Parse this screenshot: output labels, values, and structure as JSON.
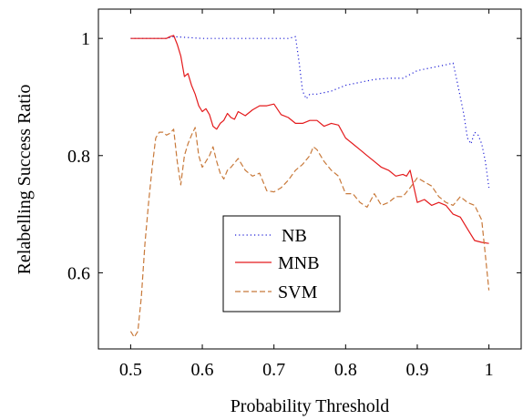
{
  "chart_data": {
    "type": "line",
    "xlabel": "Probability Threshold",
    "ylabel": "Relabelling Success Ratio",
    "xlim": [
      0.455,
      1.045
    ],
    "ylim": [
      0.47,
      1.05
    ],
    "xticks": [
      0.5,
      0.6,
      0.7,
      0.8,
      0.9,
      1
    ],
    "xtick_labels": [
      "0.5",
      "0.6",
      "0.7",
      "0.8",
      "0.9",
      "1"
    ],
    "yticks": [
      0.6,
      0.8,
      1.0
    ],
    "ytick_labels": [
      "0.6",
      "0.8",
      "1"
    ],
    "grid": false,
    "legend_position": "lower-left",
    "series": [
      {
        "name": "NB",
        "color": "#1f1fd6",
        "dash": "dotted",
        "x": [
          0.5,
          0.55,
          0.56,
          0.6,
          0.65,
          0.7,
          0.72,
          0.73,
          0.735,
          0.74,
          0.745,
          0.75,
          0.76,
          0.78,
          0.8,
          0.82,
          0.84,
          0.86,
          0.88,
          0.9,
          0.92,
          0.94,
          0.95,
          0.955,
          0.96,
          0.965,
          0.97,
          0.975,
          0.98,
          0.985,
          0.99,
          0.995,
          1.0
        ],
        "y": [
          1.0,
          1.0,
          1.003,
          1.0,
          1.0,
          1.0,
          1.0,
          1.003,
          0.96,
          0.91,
          0.897,
          0.905,
          0.905,
          0.91,
          0.92,
          0.925,
          0.93,
          0.932,
          0.932,
          0.945,
          0.95,
          0.955,
          0.958,
          0.93,
          0.9,
          0.87,
          0.83,
          0.82,
          0.84,
          0.835,
          0.82,
          0.79,
          0.745
        ]
      },
      {
        "name": "MNB",
        "color": "#e41a1c",
        "dash": "solid",
        "x": [
          0.5,
          0.51,
          0.53,
          0.55,
          0.555,
          0.56,
          0.565,
          0.57,
          0.575,
          0.58,
          0.585,
          0.59,
          0.595,
          0.6,
          0.605,
          0.61,
          0.615,
          0.62,
          0.625,
          0.63,
          0.635,
          0.64,
          0.645,
          0.65,
          0.66,
          0.67,
          0.68,
          0.69,
          0.7,
          0.71,
          0.72,
          0.73,
          0.74,
          0.75,
          0.76,
          0.77,
          0.78,
          0.79,
          0.8,
          0.81,
          0.82,
          0.83,
          0.84,
          0.85,
          0.86,
          0.87,
          0.88,
          0.885,
          0.89,
          0.9,
          0.91,
          0.92,
          0.93,
          0.94,
          0.95,
          0.96,
          0.97,
          0.98,
          0.99,
          1.0
        ],
        "y": [
          1.0,
          1.0,
          1.0,
          1.0,
          1.003,
          1.005,
          0.99,
          0.97,
          0.935,
          0.94,
          0.92,
          0.905,
          0.885,
          0.875,
          0.88,
          0.87,
          0.85,
          0.845,
          0.855,
          0.86,
          0.872,
          0.865,
          0.862,
          0.875,
          0.868,
          0.878,
          0.885,
          0.885,
          0.888,
          0.87,
          0.865,
          0.855,
          0.855,
          0.86,
          0.86,
          0.85,
          0.855,
          0.852,
          0.83,
          0.82,
          0.81,
          0.8,
          0.79,
          0.78,
          0.775,
          0.765,
          0.768,
          0.765,
          0.775,
          0.72,
          0.725,
          0.715,
          0.72,
          0.715,
          0.7,
          0.695,
          0.675,
          0.655,
          0.652,
          0.65
        ]
      },
      {
        "name": "SVM",
        "color": "#c8793a",
        "dash": "dashed",
        "x": [
          0.5,
          0.505,
          0.51,
          0.515,
          0.52,
          0.525,
          0.53,
          0.535,
          0.54,
          0.545,
          0.55,
          0.555,
          0.56,
          0.565,
          0.57,
          0.575,
          0.58,
          0.585,
          0.59,
          0.595,
          0.6,
          0.605,
          0.61,
          0.615,
          0.62,
          0.625,
          0.63,
          0.635,
          0.64,
          0.65,
          0.66,
          0.67,
          0.68,
          0.69,
          0.7,
          0.71,
          0.72,
          0.73,
          0.74,
          0.75,
          0.755,
          0.76,
          0.77,
          0.78,
          0.79,
          0.8,
          0.81,
          0.82,
          0.83,
          0.84,
          0.85,
          0.86,
          0.87,
          0.88,
          0.89,
          0.9,
          0.91,
          0.92,
          0.93,
          0.94,
          0.95,
          0.96,
          0.97,
          0.98,
          0.99,
          0.995,
          1.0
        ],
        "y": [
          0.5,
          0.49,
          0.5,
          0.56,
          0.65,
          0.72,
          0.78,
          0.83,
          0.84,
          0.84,
          0.835,
          0.838,
          0.845,
          0.79,
          0.75,
          0.8,
          0.82,
          0.835,
          0.848,
          0.8,
          0.78,
          0.79,
          0.8,
          0.815,
          0.79,
          0.77,
          0.76,
          0.775,
          0.78,
          0.795,
          0.775,
          0.765,
          0.77,
          0.74,
          0.738,
          0.745,
          0.758,
          0.775,
          0.785,
          0.8,
          0.815,
          0.81,
          0.79,
          0.775,
          0.765,
          0.735,
          0.735,
          0.72,
          0.712,
          0.735,
          0.715,
          0.72,
          0.73,
          0.73,
          0.745,
          0.762,
          0.755,
          0.748,
          0.73,
          0.72,
          0.715,
          0.73,
          0.72,
          0.715,
          0.69,
          0.63,
          0.57
        ]
      }
    ]
  }
}
